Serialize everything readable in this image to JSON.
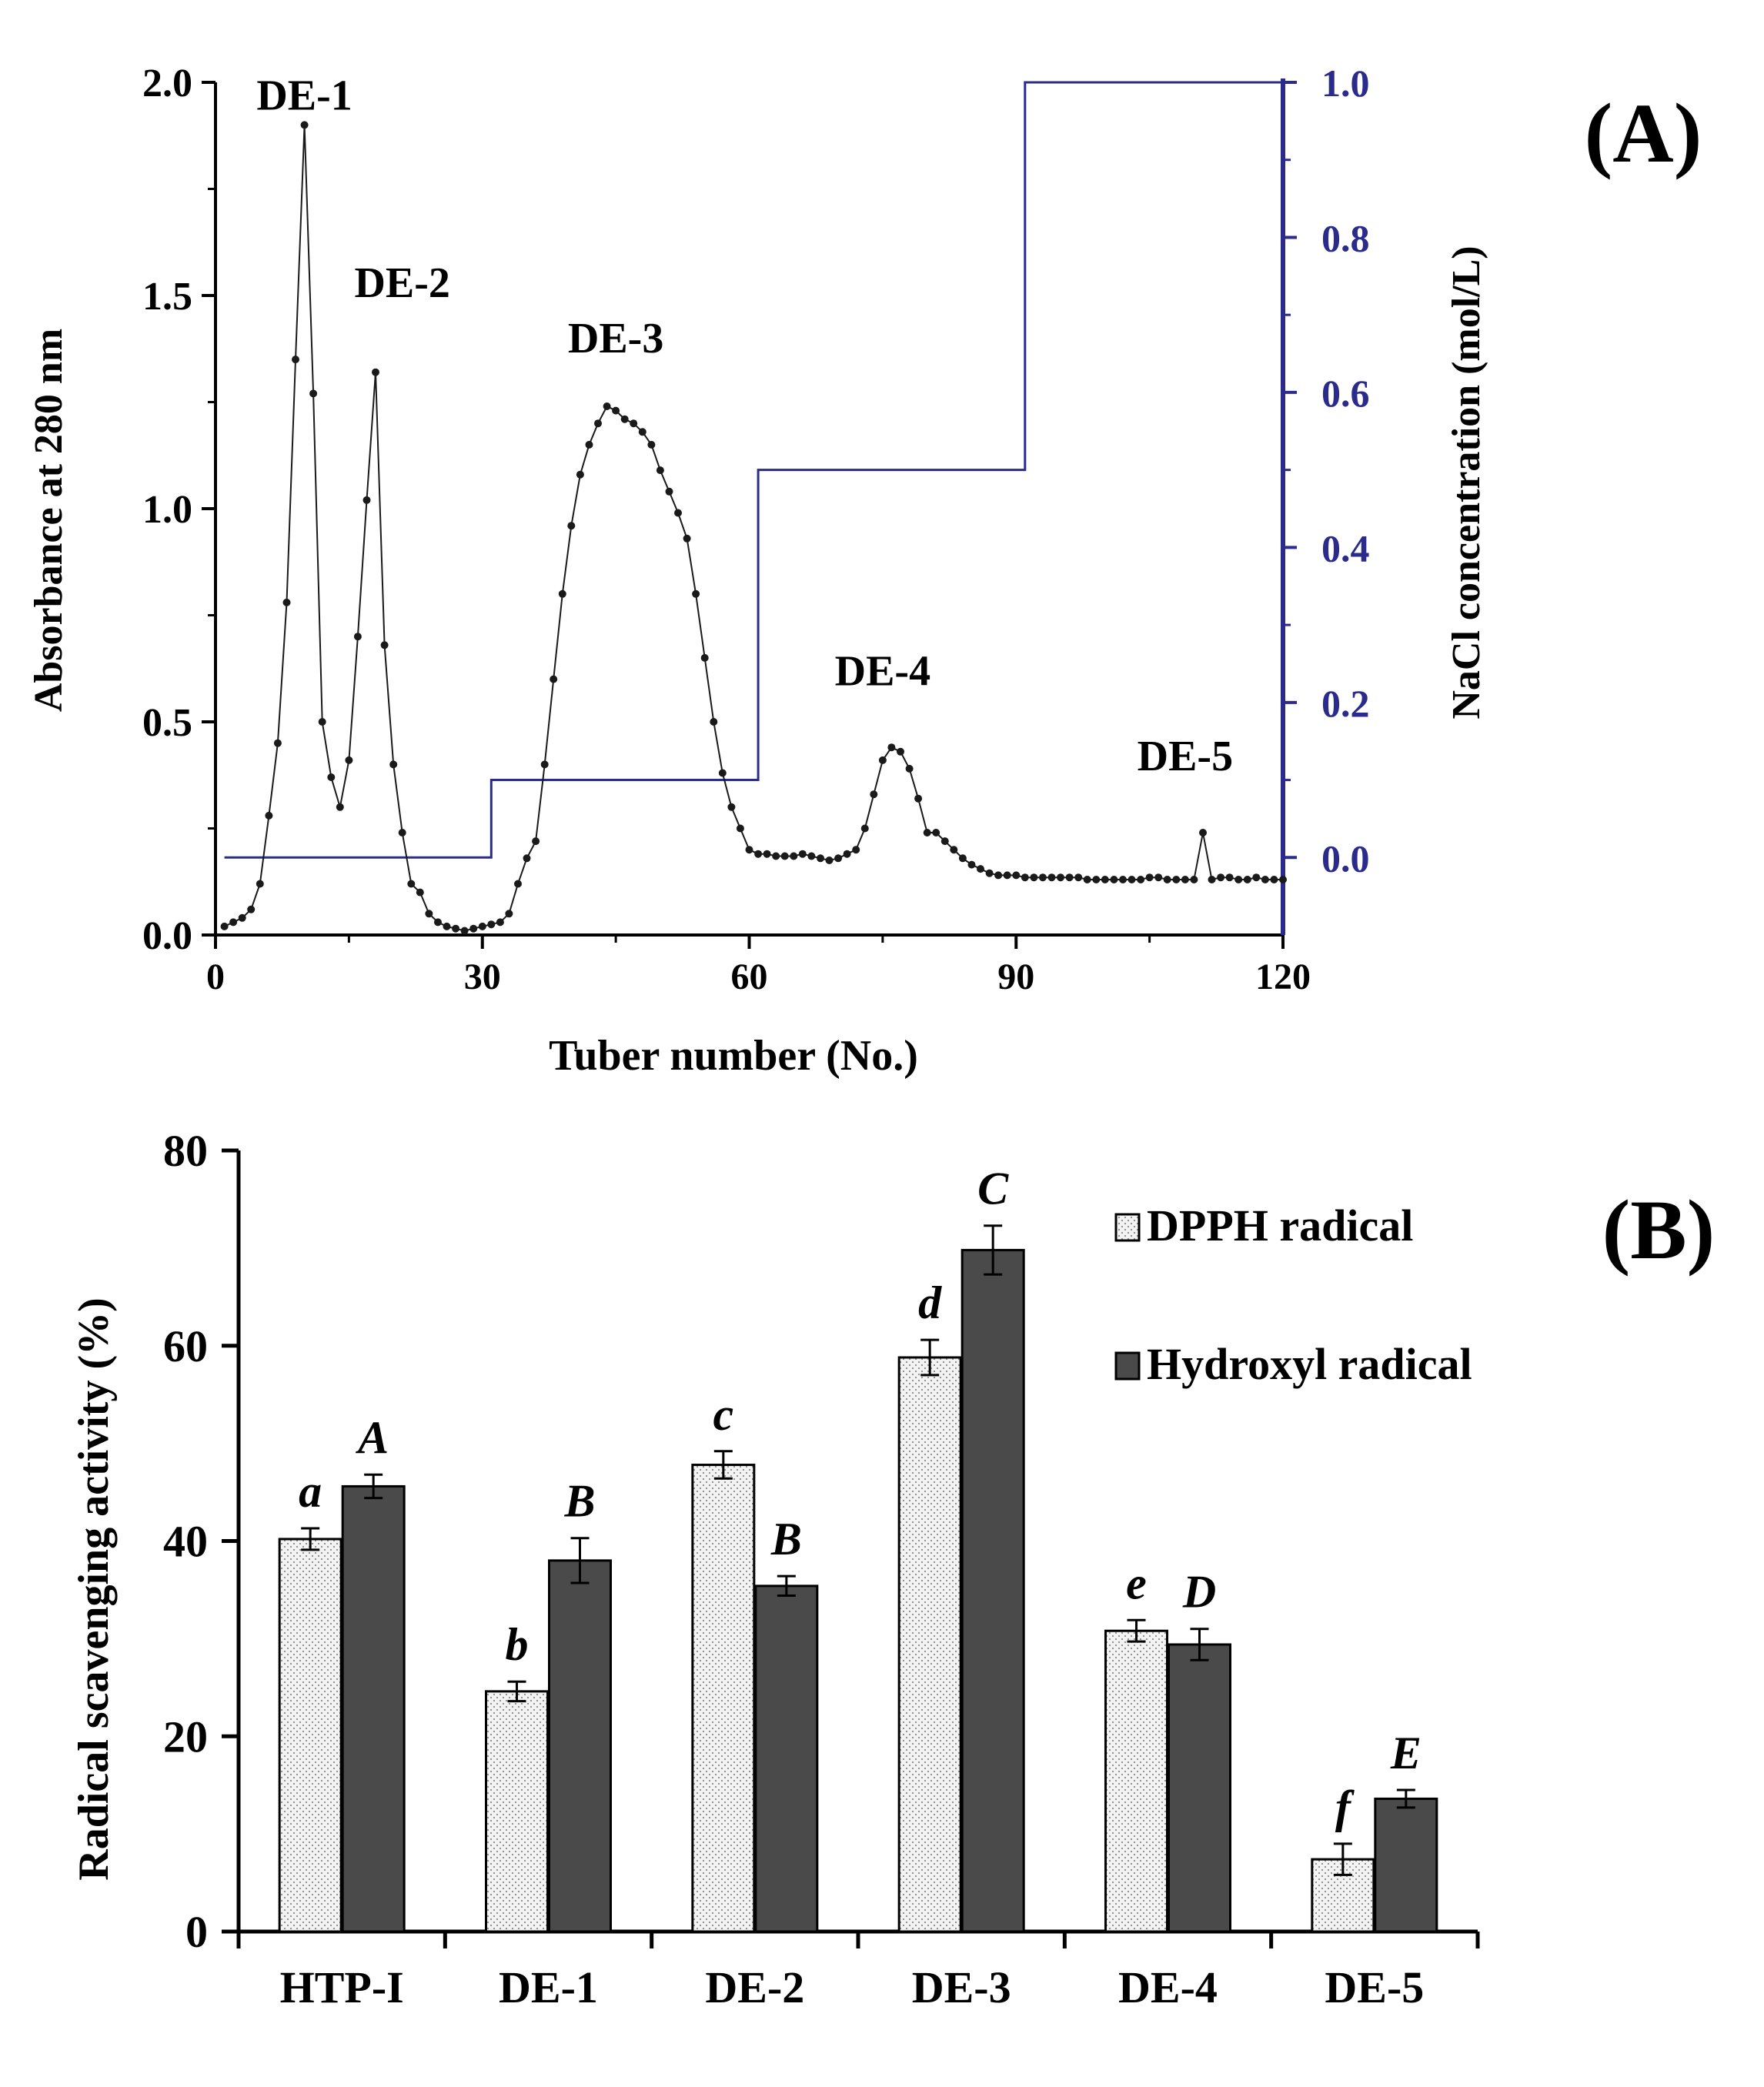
{
  "colors": {
    "axis": "#000000",
    "absorbance": "#1a1a1a",
    "nacl": "#2b2b8c",
    "dpph_fill": "#efefef",
    "hydroxyl_fill": "#4a4a4a"
  },
  "chart_data": [
    {
      "type": "line",
      "panel_label": "(A)",
      "title": "",
      "xlabel": "Tuber number (No.)",
      "ylabel": "Absorbance at 280 nm",
      "y2label": "NaCl concentration (mol/L)",
      "xlim": [
        0,
        120
      ],
      "ylim": [
        0,
        2.0
      ],
      "y2lim": [
        -0.1,
        1.0
      ],
      "xticks": [
        "0",
        "30",
        "60",
        "90",
        "120"
      ],
      "yticks": [
        "0.0",
        "0.5",
        "1.0",
        "1.5",
        "2.0"
      ],
      "y2ticks": [
        "0.0",
        "0.2",
        "0.4",
        "0.6",
        "0.8",
        "1.0"
      ],
      "peak_labels": [
        {
          "text": "DE-1",
          "x": 10,
          "y": 1.9
        },
        {
          "text": "DE-2",
          "x": 21,
          "y": 1.46
        },
        {
          "text": "DE-3",
          "x": 45,
          "y": 1.33
        },
        {
          "text": "DE-4",
          "x": 75,
          "y": 0.55
        },
        {
          "text": "DE-5",
          "x": 109,
          "y": 0.35
        }
      ],
      "series": [
        {
          "name": "Absorbance at 280 nm",
          "axis": "left",
          "x": [
            1,
            2,
            3,
            4,
            5,
            6,
            7,
            8,
            9,
            10,
            11,
            12,
            13,
            14,
            15,
            16,
            17,
            18,
            19,
            20,
            21,
            22,
            23,
            24,
            25,
            26,
            27,
            28,
            29,
            30,
            31,
            32,
            33,
            34,
            35,
            36,
            37,
            38,
            39,
            40,
            41,
            42,
            43,
            44,
            45,
            46,
            47,
            48,
            49,
            50,
            51,
            52,
            53,
            54,
            55,
            56,
            57,
            58,
            59,
            60,
            61,
            62,
            63,
            64,
            65,
            66,
            67,
            68,
            69,
            70,
            71,
            72,
            73,
            74,
            75,
            76,
            77,
            78,
            79,
            80,
            81,
            82,
            83,
            84,
            85,
            86,
            87,
            88,
            89,
            90,
            91,
            92,
            93,
            94,
            95,
            96,
            97,
            98,
            99,
            100,
            101,
            102,
            103,
            104,
            105,
            106,
            107,
            108,
            109,
            110,
            111,
            112,
            113,
            114,
            115,
            116,
            117,
            118,
            119,
            120
          ],
          "y": [
            0.02,
            0.03,
            0.04,
            0.06,
            0.12,
            0.28,
            0.45,
            0.78,
            1.35,
            1.9,
            1.27,
            0.5,
            0.37,
            0.3,
            0.41,
            0.7,
            1.02,
            1.32,
            0.68,
            0.4,
            0.24,
            0.12,
            0.1,
            0.05,
            0.03,
            0.02,
            0.015,
            0.01,
            0.015,
            0.02,
            0.025,
            0.03,
            0.05,
            0.12,
            0.18,
            0.22,
            0.4,
            0.6,
            0.8,
            0.96,
            1.08,
            1.15,
            1.2,
            1.24,
            1.23,
            1.21,
            1.2,
            1.18,
            1.15,
            1.09,
            1.04,
            0.99,
            0.93,
            0.8,
            0.65,
            0.5,
            0.38,
            0.3,
            0.25,
            0.2,
            0.19,
            0.19,
            0.185,
            0.185,
            0.185,
            0.19,
            0.185,
            0.18,
            0.175,
            0.18,
            0.19,
            0.2,
            0.25,
            0.33,
            0.41,
            0.44,
            0.43,
            0.39,
            0.32,
            0.24,
            0.24,
            0.22,
            0.2,
            0.18,
            0.165,
            0.155,
            0.145,
            0.14,
            0.14,
            0.14,
            0.135,
            0.135,
            0.135,
            0.135,
            0.135,
            0.135,
            0.135,
            0.13,
            0.13,
            0.13,
            0.13,
            0.13,
            0.13,
            0.13,
            0.135,
            0.135,
            0.13,
            0.13,
            0.13,
            0.13,
            0.24,
            0.13,
            0.135,
            0.135,
            0.13,
            0.13,
            0.135,
            0.13,
            0.13,
            0.13
          ]
        },
        {
          "name": "NaCl concentration",
          "axis": "right",
          "x": [
            1,
            31,
            31,
            61,
            61,
            91,
            91,
            120
          ],
          "y": [
            0.0,
            0.0,
            0.1,
            0.1,
            0.5,
            0.5,
            1.0,
            1.0
          ]
        }
      ]
    },
    {
      "type": "bar",
      "panel_label": "(B)",
      "title": "",
      "xlabel": "",
      "ylabel": "Radical scavenging activity (%)",
      "ylim": [
        0,
        80
      ],
      "yticks": [
        "0",
        "20",
        "40",
        "60",
        "80"
      ],
      "categories": [
        "HTP-I",
        "DE-1",
        "DE-2",
        "DE-3",
        "DE-4",
        "DE-5"
      ],
      "legend": [
        "DPPH radical",
        "Hydroxyl radical"
      ],
      "series": [
        {
          "name": "DPPH radical",
          "values": [
            40.2,
            24.6,
            47.8,
            58.8,
            30.8,
            7.4
          ],
          "errors": [
            1.1,
            1.0,
            1.4,
            1.8,
            1.1,
            1.6
          ],
          "letters": [
            "a",
            "b",
            "c",
            "d",
            "e",
            "f"
          ]
        },
        {
          "name": "Hydroxyl radical",
          "values": [
            45.6,
            38.0,
            35.4,
            69.8,
            29.4,
            13.6
          ],
          "errors": [
            1.2,
            2.3,
            1.0,
            2.5,
            1.6,
            0.9
          ],
          "letters": [
            "A",
            "B",
            "B",
            "C",
            "D",
            "E"
          ]
        }
      ]
    }
  ]
}
